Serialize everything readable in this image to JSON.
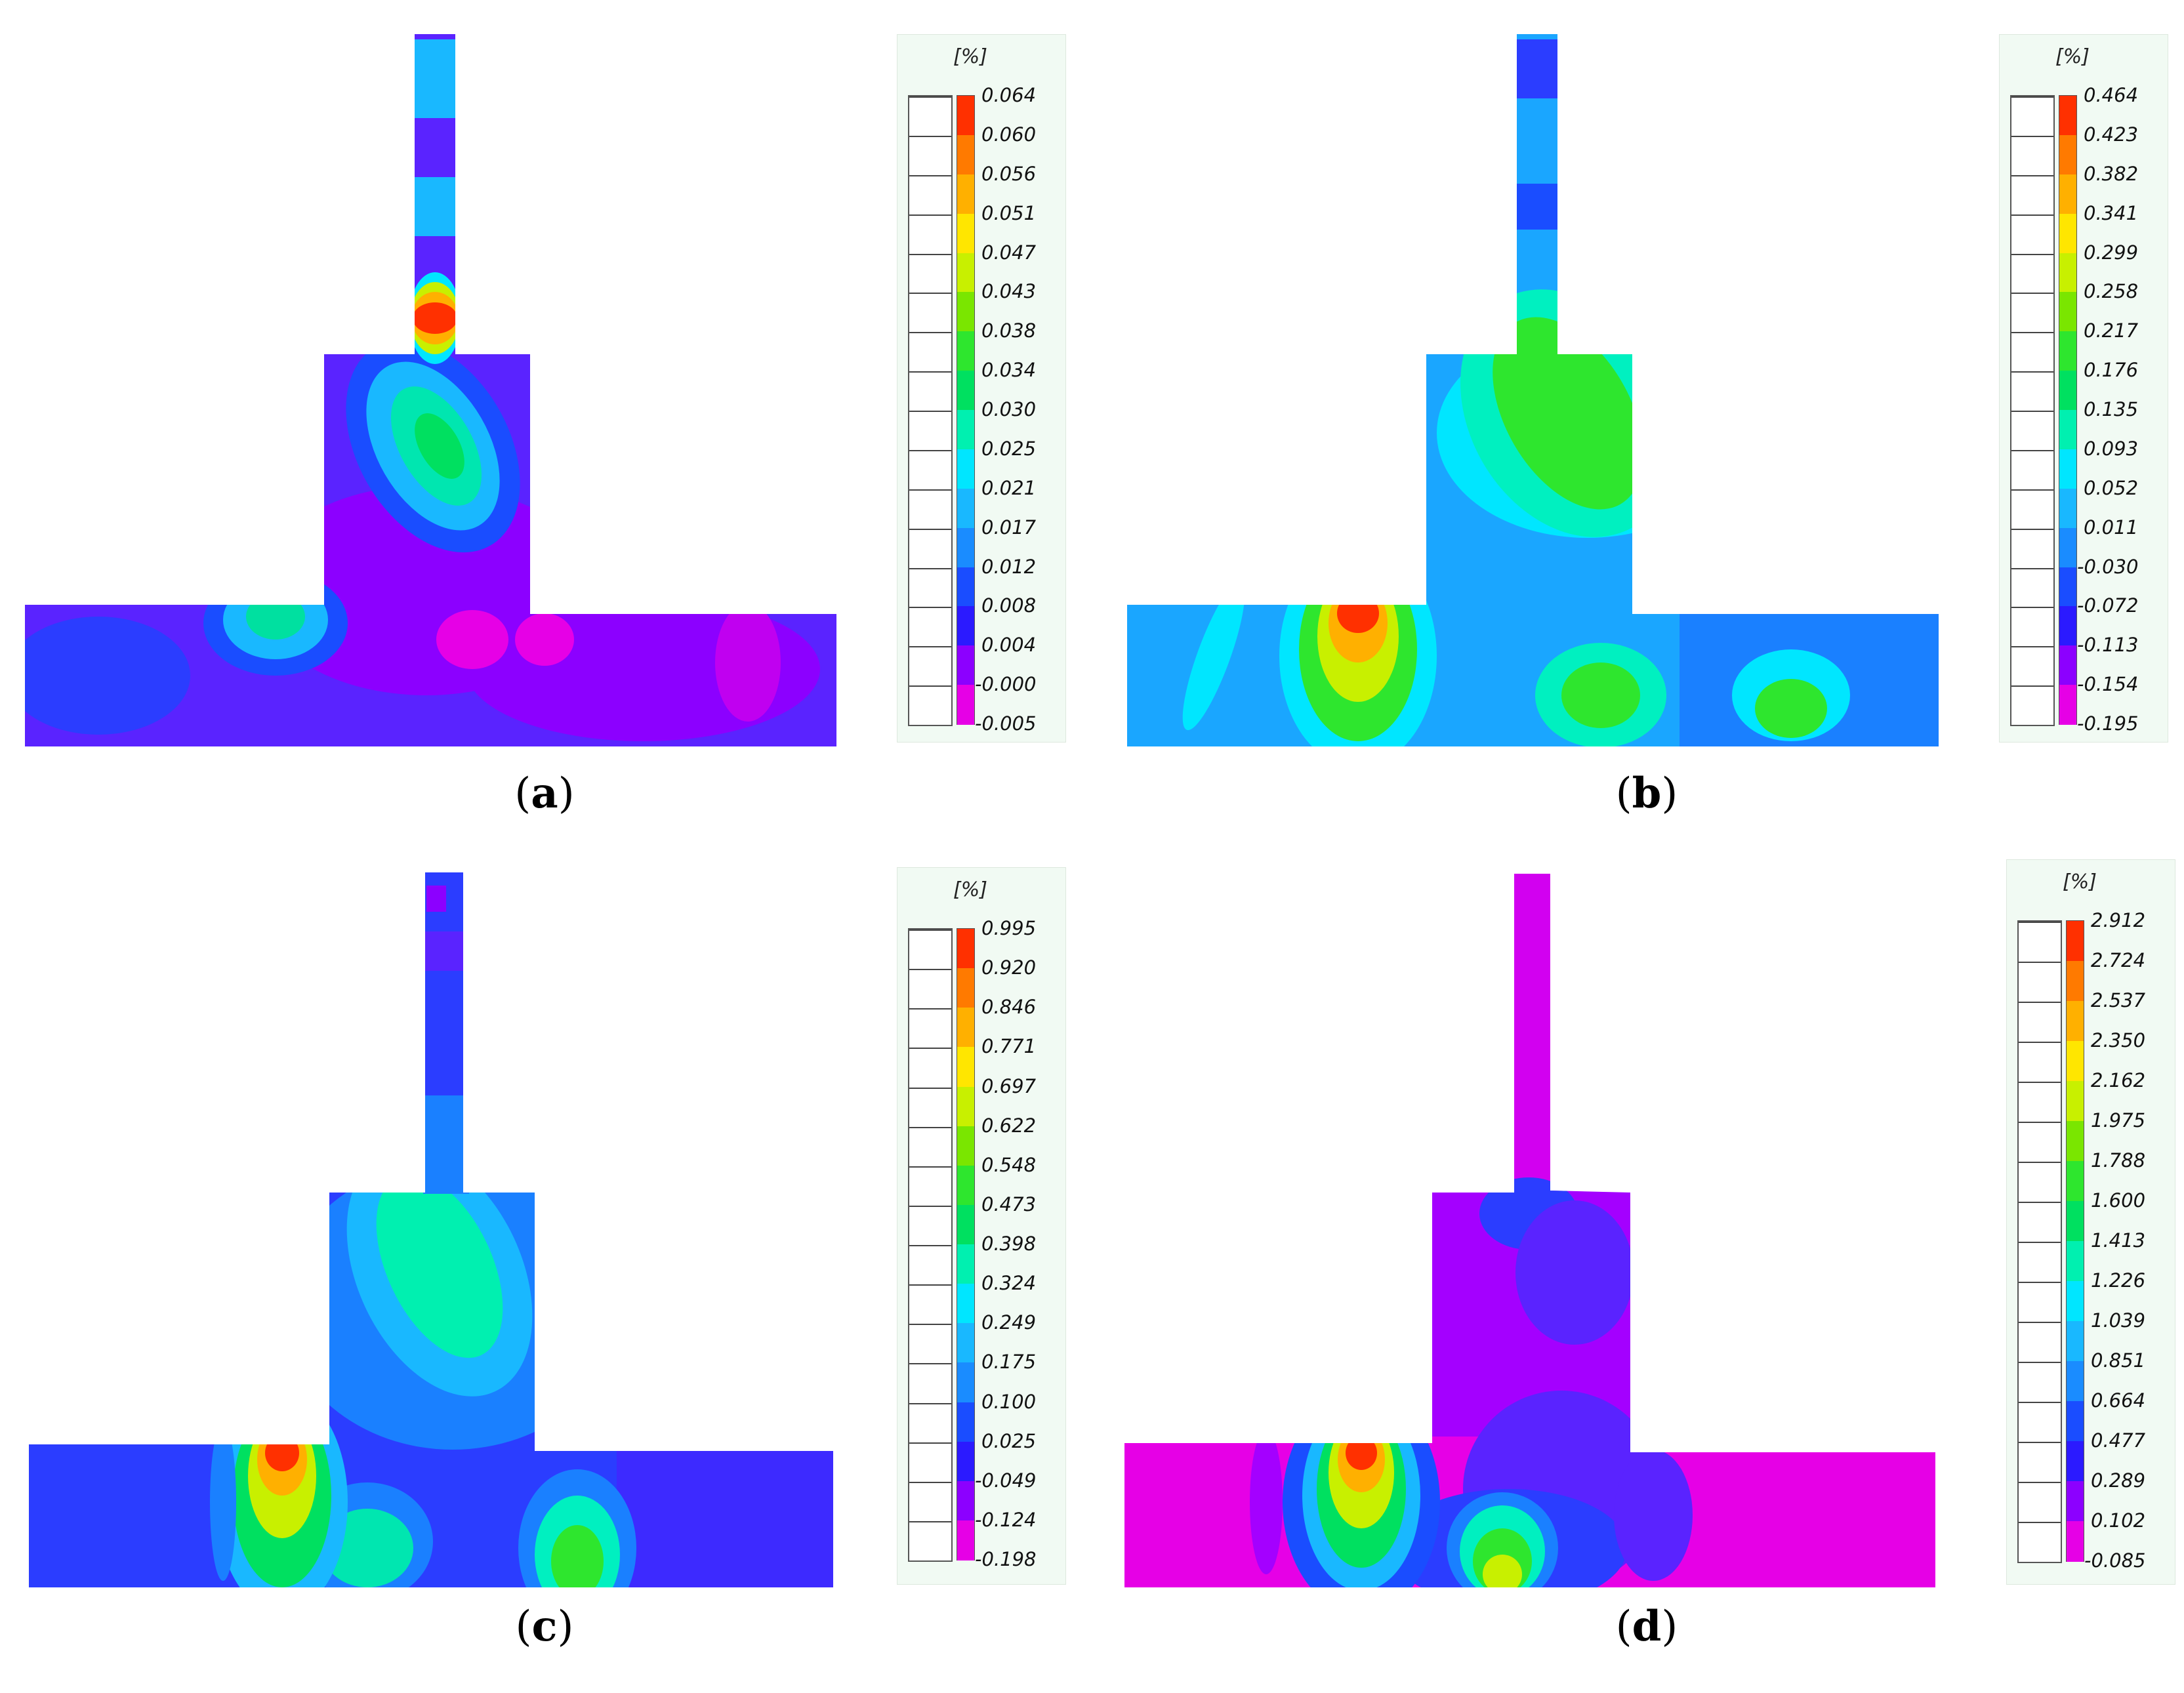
{
  "palette": [
    "#e600e6",
    "#8c00ff",
    "#2b1aff",
    "#1a4dff",
    "#1a8cff",
    "#19b8ff",
    "#00e6ff",
    "#00f0b0",
    "#00e060",
    "#2ee62e",
    "#7ae600",
    "#c8f000",
    "#ffe600",
    "#ffb000",
    "#ff7a00",
    "#ff3000"
  ],
  "panels": [
    {
      "letter": "a",
      "unit": "[%]",
      "ticks": [
        "0.064",
        "0.060",
        "0.056",
        "0.051",
        "0.047",
        "0.043",
        "0.038",
        "0.034",
        "0.030",
        "0.025",
        "0.021",
        "0.017",
        "0.012",
        "0.008",
        "0.004",
        "-0.000",
        "-0.005"
      ],
      "base_color": "#5a23ff"
    },
    {
      "letter": "b",
      "unit": "[%]",
      "ticks": [
        "0.464",
        "0.423",
        "0.382",
        "0.341",
        "0.299",
        "0.258",
        "0.217",
        "0.176",
        "0.135",
        "0.093",
        "0.052",
        "0.011",
        "-0.030",
        "-0.072",
        "-0.113",
        "-0.154",
        "-0.195"
      ],
      "base_color": "#1aa6ff"
    },
    {
      "letter": "c",
      "unit": "[%]",
      "ticks": [
        "0.995",
        "0.920",
        "0.846",
        "0.771",
        "0.697",
        "0.622",
        "0.548",
        "0.473",
        "0.398",
        "0.324",
        "0.249",
        "0.175",
        "0.100",
        "0.025",
        "-0.049",
        "-0.124",
        "-0.198"
      ],
      "base_color": "#2b3dff"
    },
    {
      "letter": "d",
      "unit": "[%]",
      "ticks": [
        "2.912",
        "2.724",
        "2.537",
        "2.350",
        "2.162",
        "1.975",
        "1.788",
        "1.600",
        "1.413",
        "1.226",
        "1.039",
        "0.851",
        "0.664",
        "0.477",
        "0.289",
        "0.102",
        "-0.085"
      ],
      "base_color": "#a400ff"
    }
  ]
}
